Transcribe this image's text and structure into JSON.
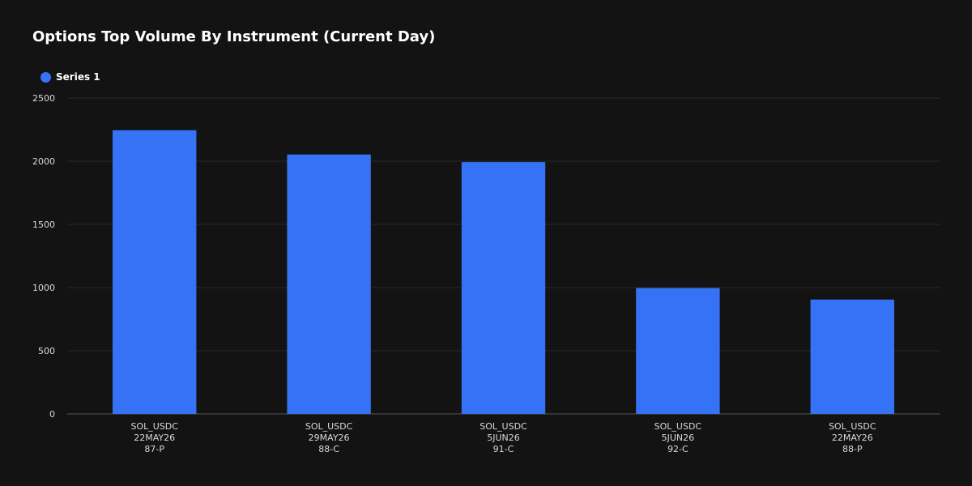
{
  "chart_data": {
    "type": "bar",
    "title": "Options Top Volume By Instrument (Current Day)",
    "categories": [
      [
        "SOL_USDC",
        "22MAY26",
        "87-P"
      ],
      [
        "SOL_USDC",
        "29MAY26",
        "88-C"
      ],
      [
        "SOL_USDC",
        "5JUN26",
        "91-C"
      ],
      [
        "SOL_USDC",
        "5JUN26",
        "92-C"
      ],
      [
        "SOL_USDC",
        "22MAY26",
        "88-P"
      ]
    ],
    "series": [
      {
        "name": "Series 1",
        "color": "#3672f5",
        "values": [
          2245,
          2053,
          1993,
          996,
          905
        ]
      }
    ],
    "ylim": [
      0,
      2500
    ],
    "yticks": [
      0,
      500,
      1000,
      1500,
      2000,
      2500
    ],
    "grid": true,
    "legend_position": "top-left",
    "xlabel": "",
    "ylabel": ""
  },
  "colors": {
    "background": "#131313",
    "bar": "#3672f5",
    "grid": "#2a2a2a",
    "axis": "#555555",
    "text": "#ffffff"
  }
}
